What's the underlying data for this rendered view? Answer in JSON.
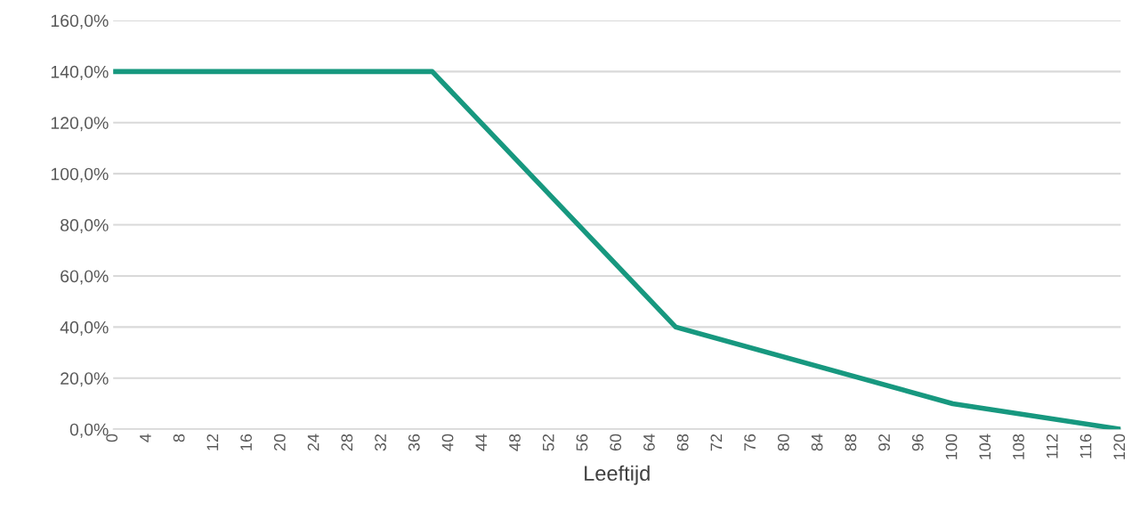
{
  "chart_data": {
    "type": "line",
    "xlabel": "Leeftijd",
    "x": [
      0,
      38,
      67,
      100,
      120
    ],
    "series": [
      {
        "color": "#17987f",
        "values": [
          140,
          140,
          40,
          10,
          0
        ]
      }
    ],
    "xlim": [
      0,
      120
    ],
    "xticks": [
      0,
      4,
      8,
      12,
      16,
      20,
      24,
      28,
      32,
      36,
      40,
      44,
      48,
      52,
      56,
      60,
      64,
      68,
      72,
      76,
      80,
      84,
      88,
      92,
      96,
      100,
      104,
      108,
      112,
      116,
      120
    ],
    "ylim": [
      0,
      160
    ],
    "yticks": [
      {
        "value": 0,
        "label": "0,0%"
      },
      {
        "value": 20,
        "label": "20,0%"
      },
      {
        "value": 40,
        "label": "40,0%"
      },
      {
        "value": 60,
        "label": "60,0%"
      },
      {
        "value": 80,
        "label": "80,0%"
      },
      {
        "value": 100,
        "label": "100,0%"
      },
      {
        "value": 120,
        "label": "120,0%"
      },
      {
        "value": 140,
        "label": "140,0%"
      },
      {
        "value": 160,
        "label": "160,0%"
      }
    ],
    "grid": "y",
    "line_style": "solid",
    "marker": "none"
  }
}
